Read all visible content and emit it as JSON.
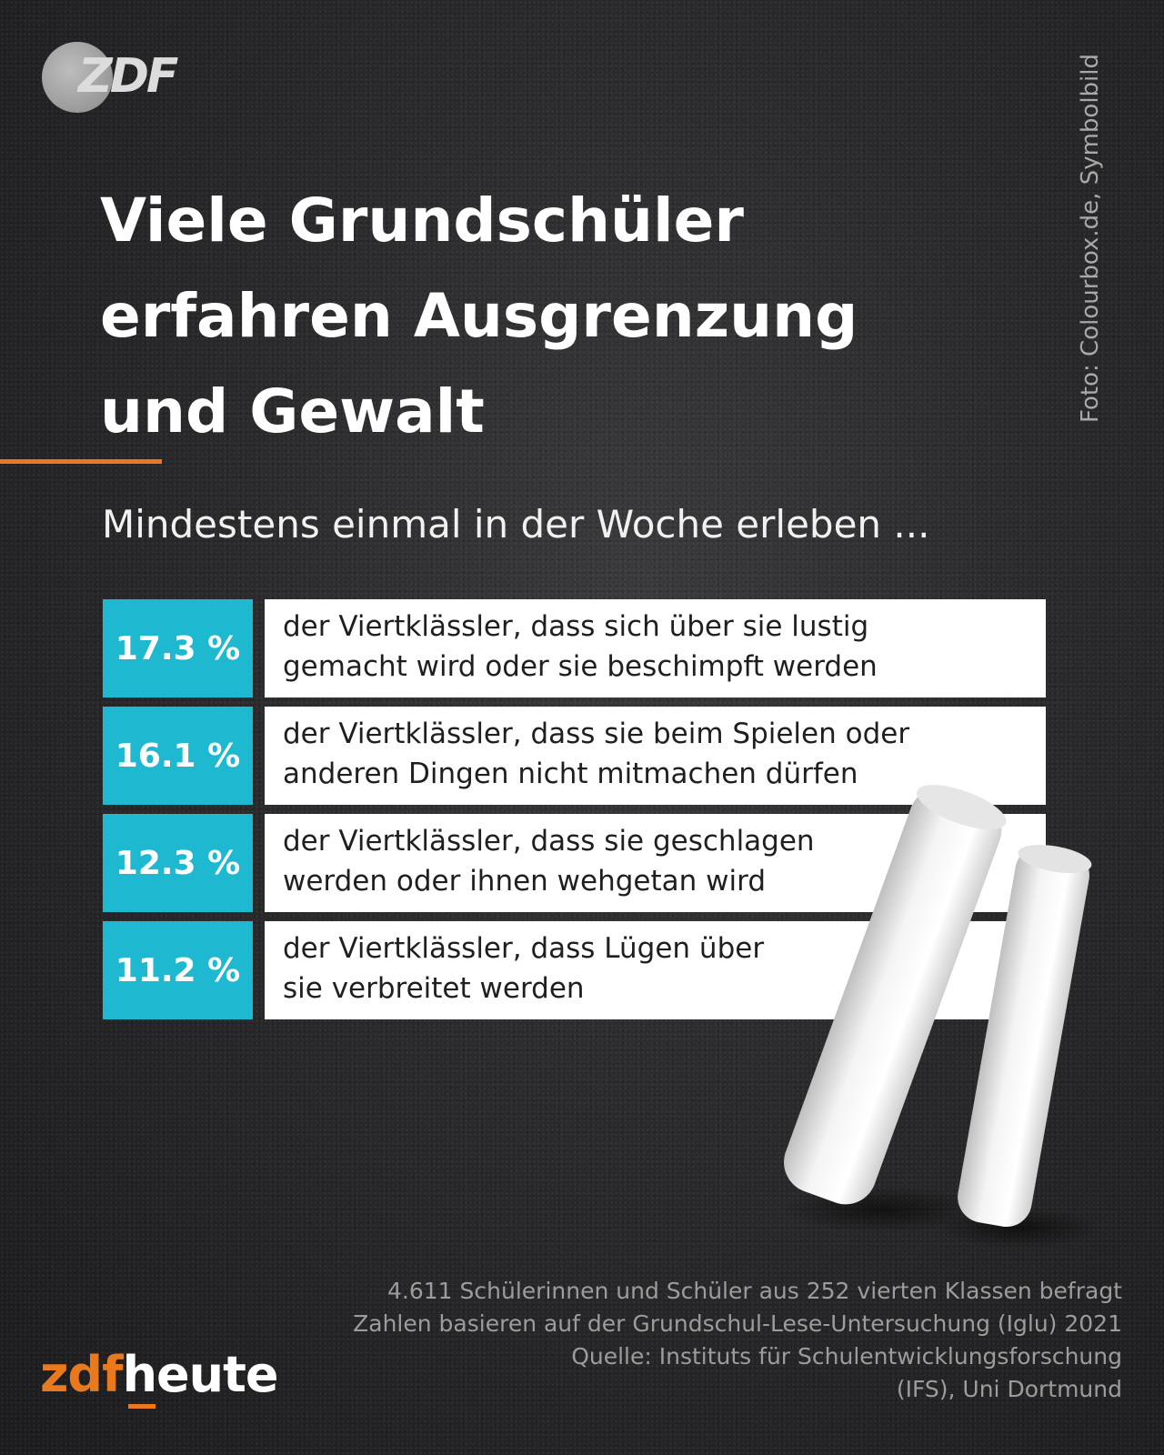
{
  "brand": {
    "top_logo_text": "ZDF",
    "logo_zdf": "zdf",
    "logo_heute": "heute",
    "accent_color": "#e8791f",
    "bar_color": "#1eb8d1"
  },
  "photo_credit": "Foto: Colourbox.de, Symbolbild",
  "headline": {
    "lines": [
      "Viele Grundschüler",
      "erfahren Ausgrenzung",
      "und Gewalt"
    ]
  },
  "chart_data": {
    "type": "table",
    "title": "Viele Grundschüler erfahren Ausgrenzung und Gewalt",
    "subtitle": "Mindestens einmal in der Woche erleben ...",
    "unit": "%",
    "rows": [
      {
        "value": 17.3,
        "label": "17.3 %",
        "text": [
          "der Viertklässler, dass sich über sie lustig",
          "gemacht wird oder sie beschimpft werden"
        ]
      },
      {
        "value": 16.1,
        "label": "16.1 %",
        "text": [
          "der Viertklässler, dass sie beim Spielen oder",
          "anderen Dingen nicht mitmachen dürfen"
        ]
      },
      {
        "value": 12.3,
        "label": "12.3 %",
        "text": [
          "der Viertklässler, dass sie geschlagen",
          "werden oder ihnen wehgetan wird"
        ]
      },
      {
        "value": 11.2,
        "label": "11.2 %",
        "text": [
          "der Viertklässler, dass Lügen über",
          "sie verbreitet werden"
        ]
      }
    ]
  },
  "footnote": {
    "lines": [
      "4.611 Schülerinnen und Schüler aus 252 vierten Klassen befragt",
      "Zahlen basieren auf der Grundschul-Lese-Untersuchung (Iglu) 2021",
      "Quelle: Instituts für Schulentwicklungsforschung",
      "(IFS), Uni Dortmund"
    ]
  }
}
